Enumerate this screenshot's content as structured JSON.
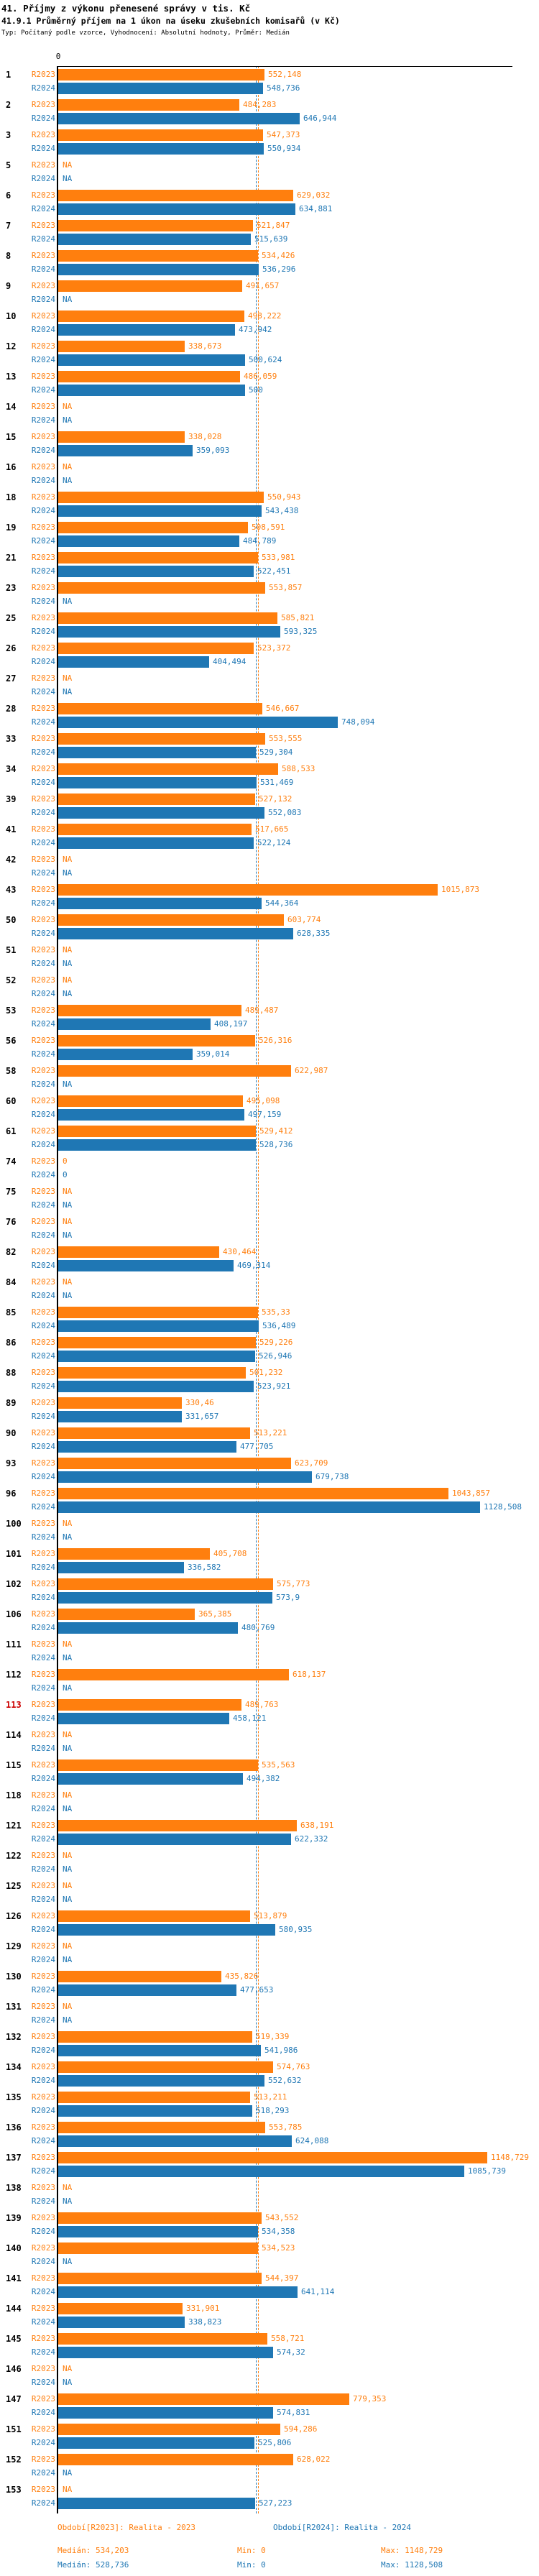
{
  "header": {
    "title": "41. Příjmy z výkonu přenesené správy v tis. Kč",
    "subtitle": "41.9.1 Průměrný příjem na 1 úkon na úseku zkušebních komisařů (v Kč)",
    "meta": "Typ: Počítaný podle vzorce, Vyhodnocení: Absolutní hodnoty, Průměr: Medián"
  },
  "axis": {
    "zero_label": "0"
  },
  "colors": {
    "r2023": "#ff7f0e",
    "r2024": "#1f77b4",
    "highlight_row_number": "#cc0000",
    "axis": "#000000"
  },
  "series_labels": {
    "r2023": "R2023",
    "r2024": "R2024"
  },
  "chart_data": {
    "type": "bar",
    "orientation": "horizontal",
    "unit": "Kč",
    "na_label": "NA",
    "medians": {
      "r2023": "534,203",
      "r2024": "528,736"
    },
    "rows": [
      {
        "id": "1",
        "r2023": "552,148",
        "r2024": "548,736"
      },
      {
        "id": "2",
        "r2023": "484,283",
        "r2024": "646,944"
      },
      {
        "id": "3",
        "r2023": "547,373",
        "r2024": "550,934"
      },
      {
        "id": "5",
        "r2023": "NA",
        "r2024": "NA"
      },
      {
        "id": "6",
        "r2023": "629,032",
        "r2024": "634,881"
      },
      {
        "id": "7",
        "r2023": "521,847",
        "r2024": "515,639"
      },
      {
        "id": "8",
        "r2023": "534,426",
        "r2024": "536,296"
      },
      {
        "id": "9",
        "r2023": "491,657",
        "r2024": "NA"
      },
      {
        "id": "10",
        "r2023": "498,222",
        "r2024": "473,942"
      },
      {
        "id": "12",
        "r2023": "338,673",
        "r2024": "500,624"
      },
      {
        "id": "13",
        "r2023": "486,059",
        "r2024": "500"
      },
      {
        "id": "14",
        "r2023": "NA",
        "r2024": "NA"
      },
      {
        "id": "15",
        "r2023": "338,028",
        "r2024": "359,093"
      },
      {
        "id": "16",
        "r2023": "NA",
        "r2024": "NA"
      },
      {
        "id": "18",
        "r2023": "550,943",
        "r2024": "543,438"
      },
      {
        "id": "19",
        "r2023": "508,591",
        "r2024": "484,789"
      },
      {
        "id": "21",
        "r2023": "533,981",
        "r2024": "522,451"
      },
      {
        "id": "23",
        "r2023": "553,857",
        "r2024": "NA"
      },
      {
        "id": "25",
        "r2023": "585,821",
        "r2024": "593,325"
      },
      {
        "id": "26",
        "r2023": "523,372",
        "r2024": "404,494"
      },
      {
        "id": "27",
        "r2023": "NA",
        "r2024": "NA"
      },
      {
        "id": "28",
        "r2023": "546,667",
        "r2024": "748,094"
      },
      {
        "id": "33",
        "r2023": "553,555",
        "r2024": "529,304"
      },
      {
        "id": "34",
        "r2023": "588,533",
        "r2024": "531,469"
      },
      {
        "id": "39",
        "r2023": "527,132",
        "r2024": "552,083"
      },
      {
        "id": "41",
        "r2023": "517,665",
        "r2024": "522,124"
      },
      {
        "id": "42",
        "r2023": "NA",
        "r2024": "NA"
      },
      {
        "id": "43",
        "r2023": "1015,873",
        "r2024": "544,364"
      },
      {
        "id": "50",
        "r2023": "603,774",
        "r2024": "628,335"
      },
      {
        "id": "51",
        "r2023": "NA",
        "r2024": "NA"
      },
      {
        "id": "52",
        "r2023": "NA",
        "r2024": "NA"
      },
      {
        "id": "53",
        "r2023": "489,487",
        "r2024": "408,197"
      },
      {
        "id": "56",
        "r2023": "526,316",
        "r2024": "359,014"
      },
      {
        "id": "58",
        "r2023": "622,987",
        "r2024": "NA"
      },
      {
        "id": "60",
        "r2023": "495,098",
        "r2024": "497,159"
      },
      {
        "id": "61",
        "r2023": "529,412",
        "r2024": "528,736"
      },
      {
        "id": "74",
        "r2023": "0",
        "r2024": "0"
      },
      {
        "id": "75",
        "r2023": "NA",
        "r2024": "NA"
      },
      {
        "id": "76",
        "r2023": "NA",
        "r2024": "NA"
      },
      {
        "id": "82",
        "r2023": "430,464",
        "r2024": "469,314"
      },
      {
        "id": "84",
        "r2023": "NA",
        "r2024": "NA"
      },
      {
        "id": "85",
        "r2023": "535,33",
        "r2024": "536,489"
      },
      {
        "id": "86",
        "r2023": "529,226",
        "r2024": "526,946"
      },
      {
        "id": "88",
        "r2023": "501,232",
        "r2024": "523,921"
      },
      {
        "id": "89",
        "r2023": "330,46",
        "r2024": "331,657"
      },
      {
        "id": "90",
        "r2023": "513,221",
        "r2024": "477,705"
      },
      {
        "id": "93",
        "r2023": "623,709",
        "r2024": "679,738"
      },
      {
        "id": "96",
        "r2023": "1043,857",
        "r2024": "1128,508"
      },
      {
        "id": "100",
        "r2023": "NA",
        "r2024": "NA"
      },
      {
        "id": "101",
        "r2023": "405,708",
        "r2024": "336,582"
      },
      {
        "id": "102",
        "r2023": "575,773",
        "r2024": "573,9"
      },
      {
        "id": "106",
        "r2023": "365,385",
        "r2024": "480,769"
      },
      {
        "id": "111",
        "r2023": "NA",
        "r2024": "NA"
      },
      {
        "id": "112",
        "r2023": "618,137",
        "r2024": "NA"
      },
      {
        "id": "113",
        "highlight": true,
        "r2023": "489,763",
        "r2024": "458,121"
      },
      {
        "id": "114",
        "r2023": "NA",
        "r2024": "NA"
      },
      {
        "id": "115",
        "r2023": "535,563",
        "r2024": "494,382"
      },
      {
        "id": "118",
        "r2023": "NA",
        "r2024": "NA"
      },
      {
        "id": "121",
        "r2023": "638,191",
        "r2024": "622,332"
      },
      {
        "id": "122",
        "r2023": "NA",
        "r2024": "NA"
      },
      {
        "id": "125",
        "r2023": "NA",
        "r2024": "NA"
      },
      {
        "id": "126",
        "r2023": "513,879",
        "r2024": "580,935"
      },
      {
        "id": "129",
        "r2023": "NA",
        "r2024": "NA"
      },
      {
        "id": "130",
        "r2023": "435,826",
        "r2024": "477,653"
      },
      {
        "id": "131",
        "r2023": "NA",
        "r2024": "NA"
      },
      {
        "id": "132",
        "r2023": "519,339",
        "r2024": "541,986"
      },
      {
        "id": "134",
        "r2023": "574,763",
        "r2024": "552,632"
      },
      {
        "id": "135",
        "r2023": "513,211",
        "r2024": "518,293"
      },
      {
        "id": "136",
        "r2023": "553,785",
        "r2024": "624,088"
      },
      {
        "id": "137",
        "r2023": "1148,729",
        "r2024": "1085,739"
      },
      {
        "id": "138",
        "r2023": "NA",
        "r2024": "NA"
      },
      {
        "id": "139",
        "r2023": "543,552",
        "r2024": "534,358"
      },
      {
        "id": "140",
        "r2023": "534,523",
        "r2024": "NA"
      },
      {
        "id": "141",
        "r2023": "544,397",
        "r2024": "641,114"
      },
      {
        "id": "144",
        "r2023": "331,901",
        "r2024": "338,823"
      },
      {
        "id": "145",
        "r2023": "558,721",
        "r2024": "574,32"
      },
      {
        "id": "146",
        "r2023": "NA",
        "r2024": "NA"
      },
      {
        "id": "147",
        "r2023": "779,353",
        "r2024": "574,831"
      },
      {
        "id": "151",
        "r2023": "594,286",
        "r2024": "525,806"
      },
      {
        "id": "152",
        "r2023": "628,022",
        "r2024": "NA"
      },
      {
        "id": "153",
        "r2023": "NA",
        "r2024": "527,223"
      }
    ]
  },
  "footer": {
    "legend_r2023": "Období[R2023]: Realita - 2023",
    "legend_r2024": "Období[R2024]: Realita - 2024",
    "stats_r2023": {
      "median": "Medián: 534,203",
      "min": "Min: 0",
      "max": "Max: 1148,729"
    },
    "stats_r2024": {
      "median": "Medián: 528,736",
      "min": "Min: 0",
      "max": "Max: 1128,508"
    }
  }
}
